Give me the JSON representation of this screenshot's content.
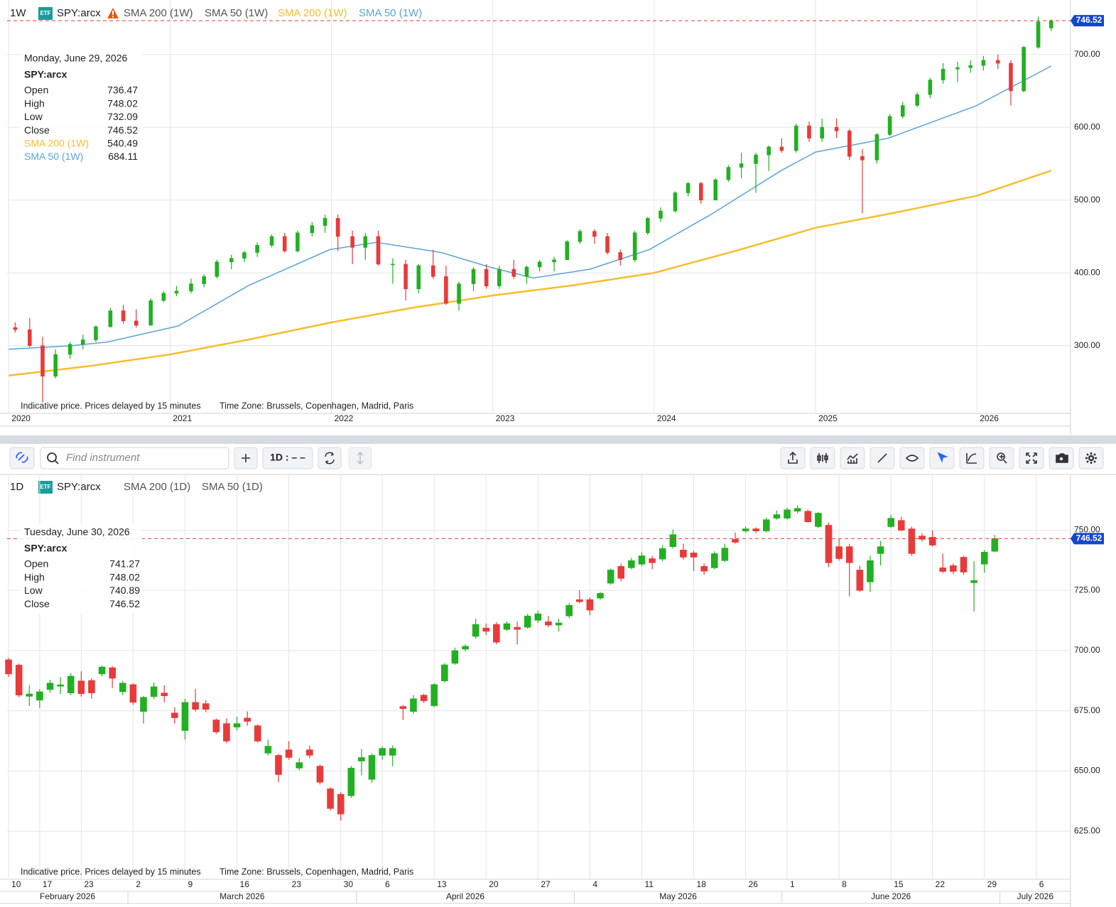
{
  "toolbar": {
    "search_placeholder": "Find instrument",
    "interval": "1D : – –"
  },
  "chart_data": [
    {
      "type": "candlestick",
      "interval": "1W",
      "badge": "ETF",
      "symbol": "SPY:arcx",
      "studies": [
        "SMA 200 (1W)",
        "SMA 50 (1W)"
      ],
      "note": "Indicative price. Prices delayed by 15 minutes",
      "timezone": "Time Zone: Brussels, Copenhagen, Madrid, Paris",
      "info": {
        "date": "Monday, June 29, 2026",
        "symbol": "SPY:arcx",
        "rows": [
          {
            "label": "Open",
            "value": 736.47
          },
          {
            "label": "High",
            "value": 748.02
          },
          {
            "label": "Low",
            "value": 732.09
          },
          {
            "label": "Close",
            "value": 746.52
          }
        ],
        "series_values": [
          540.49,
          684.11
        ]
      },
      "last_price": 746.52,
      "up_color": "#22b022",
      "down_color": "#e83a3a",
      "grid": true,
      "xlim": [
        2019.99,
        2026.58
      ],
      "xticks": [
        2020,
        2021,
        2022,
        2023,
        2024,
        2025,
        2026
      ],
      "ylim": [
        207,
        770
      ],
      "yticks": [
        {
          "value": 300,
          "label": "300.00"
        },
        {
          "value": 400,
          "label": "400.00"
        },
        {
          "value": 500,
          "label": "500.00"
        },
        {
          "value": 600,
          "label": "600.00"
        },
        {
          "value": 700,
          "label": "700.00"
        }
      ],
      "x": [
        2020.04,
        2020.13,
        2020.21,
        2020.29,
        2020.38,
        2020.46,
        2020.54,
        2020.63,
        2020.71,
        2020.79,
        2020.88,
        2020.96,
        2021.04,
        2021.13,
        2021.21,
        2021.29,
        2021.38,
        2021.46,
        2021.54,
        2021.63,
        2021.71,
        2021.79,
        2021.88,
        2021.96,
        2022.04,
        2022.13,
        2022.21,
        2022.29,
        2022.38,
        2022.46,
        2022.54,
        2022.63,
        2022.71,
        2022.79,
        2022.88,
        2022.96,
        2023.04,
        2023.13,
        2023.21,
        2023.29,
        2023.38,
        2023.46,
        2023.54,
        2023.63,
        2023.71,
        2023.79,
        2023.88,
        2023.96,
        2024.04,
        2024.13,
        2024.21,
        2024.29,
        2024.38,
        2024.46,
        2024.54,
        2024.63,
        2024.71,
        2024.79,
        2024.88,
        2024.96,
        2025.04,
        2025.13,
        2025.21,
        2025.29,
        2025.38,
        2025.46,
        2025.54,
        2025.63,
        2025.71,
        2025.79,
        2025.88,
        2025.96,
        2026.04,
        2026.13,
        2026.21,
        2026.29,
        2026.38,
        2026.46
      ],
      "open": [
        325,
        322,
        300,
        258,
        288,
        302,
        308,
        326,
        348,
        334,
        328,
        362,
        372,
        375,
        385,
        395,
        415,
        420,
        428,
        438,
        450,
        430,
        455,
        465,
        475,
        450,
        435,
        450,
        412,
        412,
        378,
        410,
        395,
        358,
        385,
        405,
        382,
        405,
        395,
        408,
        415,
        418,
        443,
        457,
        450,
        428,
        418,
        455,
        475,
        485,
        510,
        523,
        500,
        528,
        545,
        550,
        562,
        573,
        568,
        602,
        585,
        600,
        595,
        560,
        555,
        590,
        615,
        630,
        645,
        665,
        680,
        682,
        685,
        692,
        688,
        650,
        710,
        736.47
      ],
      "high": [
        332,
        338,
        312,
        295,
        305,
        315,
        328,
        352,
        356,
        350,
        365,
        375,
        382,
        392,
        398,
        418,
        425,
        430,
        442,
        453,
        455,
        458,
        470,
        480,
        480,
        458,
        455,
        458,
        420,
        418,
        412,
        432,
        410,
        388,
        408,
        412,
        410,
        418,
        410,
        418,
        422,
        445,
        460,
        460,
        455,
        432,
        458,
        477,
        490,
        512,
        525,
        525,
        530,
        548,
        565,
        565,
        575,
        585,
        605,
        608,
        612,
        612,
        598,
        570,
        592,
        618,
        635,
        648,
        668,
        688,
        690,
        692,
        698,
        700,
        692,
        712,
        752,
        748.02
      ],
      "low": [
        318,
        298,
        222,
        255,
        282,
        295,
        305,
        325,
        330,
        325,
        328,
        360,
        368,
        372,
        380,
        392,
        405,
        415,
        422,
        435,
        428,
        428,
        450,
        455,
        430,
        412,
        418,
        410,
        385,
        362,
        372,
        392,
        356,
        348,
        375,
        378,
        378,
        392,
        385,
        402,
        402,
        418,
        440,
        440,
        425,
        410,
        415,
        452,
        470,
        483,
        505,
        495,
        500,
        525,
        530,
        510,
        540,
        565,
        565,
        580,
        580,
        585,
        555,
        482,
        550,
        588,
        612,
        628,
        640,
        660,
        662,
        675,
        678,
        680,
        630,
        648,
        708,
        732.09
      ],
      "close": [
        322,
        300,
        258,
        288,
        302,
        308,
        326,
        348,
        334,
        328,
        362,
        372,
        375,
        385,
        395,
        415,
        420,
        428,
        438,
        450,
        430,
        455,
        465,
        475,
        450,
        435,
        450,
        412,
        412,
        378,
        410,
        395,
        358,
        385,
        405,
        382,
        405,
        395,
        408,
        415,
        418,
        443,
        457,
        450,
        428,
        418,
        455,
        475,
        485,
        510,
        523,
        500,
        528,
        545,
        550,
        562,
        573,
        568,
        602,
        585,
        600,
        595,
        560,
        555,
        590,
        615,
        630,
        645,
        665,
        680,
        682,
        685,
        692,
        688,
        650,
        710,
        745,
        746.52
      ],
      "series": [
        {
          "name": "SMA 200 (1W)",
          "color": "#f7bd2c",
          "x": [
            2020.0,
            2020.5,
            2021.0,
            2021.5,
            2022.0,
            2022.5,
            2023.0,
            2023.5,
            2024.0,
            2024.5,
            2025.0,
            2025.5,
            2026.0,
            2026.46
          ],
          "values": [
            259,
            272,
            288,
            309,
            332,
            352,
            369,
            383,
            400,
            430,
            462,
            483,
            506,
            540.49
          ]
        },
        {
          "name": "SMA 50 (1W)",
          "color": "#5ba3d9",
          "x": [
            2020.0,
            2020.39,
            2020.61,
            2021.05,
            2021.49,
            2021.99,
            2022.28,
            2022.68,
            2022.98,
            2023.25,
            2023.6,
            2023.97,
            2024.35,
            2024.79,
            2025.0,
            2025.45,
            2025.99,
            2026.46
          ],
          "values": [
            295,
            300,
            305,
            327,
            383,
            432,
            442,
            428,
            408,
            393,
            405,
            432,
            480,
            541,
            566,
            585,
            629,
            684.11
          ]
        }
      ]
    },
    {
      "type": "candlestick",
      "interval": "1D",
      "badge": "ETF",
      "symbol": "SPY:arcx",
      "studies": [
        "SMA 200 (1D)",
        "SMA 50 (1D)"
      ],
      "note": "Indicative price. Prices delayed by 15 minutes",
      "timezone": "Time Zone: Brussels, Copenhagen, Madrid, Paris",
      "info": {
        "date": "Tuesday, June 30, 2026",
        "symbol": "SPY:arcx",
        "rows": [
          {
            "label": "Open",
            "value": 741.27
          },
          {
            "label": "High",
            "value": 748.02
          },
          {
            "label": "Low",
            "value": 740.89
          },
          {
            "label": "Close",
            "value": 746.52
          }
        ]
      },
      "last_price": 746.52,
      "up_color": "#22b022",
      "down_color": "#e83a3a",
      "grid": true,
      "xlim": [
        -0.14,
        102.3
      ],
      "xticks": [
        {
          "value": 0,
          "label": "10"
        },
        {
          "value": 3,
          "label": "17"
        },
        {
          "value": 7,
          "label": "23"
        },
        {
          "value": 12,
          "label": "2"
        },
        {
          "value": 17,
          "label": "9"
        },
        {
          "value": 22,
          "label": "16"
        },
        {
          "value": 27,
          "label": "23"
        },
        {
          "value": 32,
          "label": "30"
        },
        {
          "value": 36,
          "label": "6"
        },
        {
          "value": 41,
          "label": "13"
        },
        {
          "value": 46,
          "label": "20"
        },
        {
          "value": 51,
          "label": "27"
        },
        {
          "value": 56,
          "label": "4"
        },
        {
          "value": 61,
          "label": "11"
        },
        {
          "value": 66,
          "label": "18"
        },
        {
          "value": 71,
          "label": "26"
        },
        {
          "value": 75,
          "label": "1"
        },
        {
          "value": 80,
          "label": "8"
        },
        {
          "value": 85,
          "label": "15"
        },
        {
          "value": 89,
          "label": "22"
        },
        {
          "value": 94,
          "label": "29"
        },
        {
          "value": 99,
          "label": "6"
        }
      ],
      "month_ticks": [
        {
          "value": 0,
          "label": "February 2026"
        },
        {
          "value": 12,
          "label": "March 2026"
        },
        {
          "value": 34,
          "label": "April 2026"
        },
        {
          "value": 55,
          "label": "May 2026"
        },
        {
          "value": 75,
          "label": "June 2026"
        },
        {
          "value": 96,
          "label": "July 2026"
        }
      ],
      "ylim": [
        605,
        772
      ],
      "yticks": [
        {
          "value": 625,
          "label": "625.00"
        },
        {
          "value": 650,
          "label": "650.00"
        },
        {
          "value": 675,
          "label": "675.00"
        },
        {
          "value": 700,
          "label": "700.00"
        },
        {
          "value": 725,
          "label": "725.00"
        },
        {
          "value": 750,
          "label": "750.00"
        }
      ],
      "open": [
        696.2,
        694,
        681,
        679.4,
        683.8,
        685.2,
        682.4,
        687.4,
        687.6,
        690.3,
        692.9,
        682.9,
        685.9,
        674.7,
        680.9,
        682.4,
        674.1,
        666.8,
        678.5,
        678,
        671.2,
        669.7,
        668.2,
        672,
        668.8,
        657.4,
        656.5,
        658.8,
        651.2,
        658.8,
        652,
        642.6,
        640.3,
        639.7,
        654.1,
        646.5,
        656.5,
        656.5,
        676.8,
        674.7,
        681.5,
        677.1,
        687.4,
        694.7,
        700.6,
        705.9,
        709.4,
        710.9,
        708.8,
        709.7,
        709.7,
        712.6,
        712,
        710.6,
        714.4,
        721.2,
        721.2,
        721.8,
        728,
        735,
        734.4,
        735.9,
        738.2,
        738,
        743.2,
        741.8,
        740.6,
        735,
        734.4,
        737.4,
        746.2,
        749.7,
        750.6,
        749.7,
        755,
        755,
        757.9,
        757.9,
        751.5,
        752.1,
        743.2,
        743.2,
        733.5,
        728.5,
        740.3,
        751.5,
        754.1,
        750.6,
        747.6,
        747.1,
        734.4,
        735.3,
        738.8,
        728.2,
        735.9,
        741.27
      ],
      "high": [
        697,
        694.6,
        685.6,
        684,
        687.8,
        689,
        690.6,
        691.4,
        688.5,
        693.8,
        693.5,
        687.4,
        686.5,
        681.2,
        686.8,
        685.6,
        676.5,
        680,
        684.1,
        679.4,
        671.8,
        671.8,
        672.6,
        674.7,
        669.4,
        663,
        657.1,
        662.4,
        655.3,
        660.6,
        652.6,
        643.2,
        641.2,
        652.1,
        659.1,
        657.4,
        660.3,
        660.6,
        677.4,
        681.5,
        682.1,
        686.5,
        694.7,
        701.2,
        702.6,
        713.2,
        711.2,
        711.8,
        712.1,
        712,
        715.3,
        716.5,
        714.4,
        713.2,
        719.7,
        725,
        722.1,
        724.4,
        734.1,
        736.2,
        738.5,
        740.9,
        739.4,
        743.8,
        750.3,
        744.4,
        741.5,
        736.2,
        741.2,
        744.4,
        749.1,
        751.5,
        751.2,
        755.3,
        758.2,
        759.4,
        760.3,
        758.5,
        757.6,
        753.2,
        746.5,
        744.4,
        735.3,
        739.4,
        745.6,
        756.5,
        755.6,
        751.5,
        748.8,
        750,
        740.3,
        736.2,
        739.4,
        737.1,
        741.8,
        748.02
      ],
      "low": [
        689,
        680.6,
        677,
        676.1,
        682.5,
        682,
        681.5,
        680.9,
        680,
        689.4,
        684.4,
        681.5,
        677.4,
        669.7,
        680,
        678.5,
        669.7,
        663,
        674.7,
        674.4,
        665.3,
        661.5,
        666.8,
        668.8,
        661.8,
        656.5,
        645.3,
        654.7,
        650.3,
        655.3,
        644.4,
        633.5,
        629.4,
        638.8,
        648.2,
        645,
        654.7,
        652,
        671.2,
        673.8,
        678.2,
        676.5,
        686.8,
        694.1,
        699.7,
        705,
        706.5,
        702.6,
        708.2,
        702.6,
        709.1,
        711.5,
        709.7,
        707.9,
        713.5,
        719.7,
        714.7,
        721.2,
        727.4,
        728.8,
        733.8,
        735,
        733.8,
        737.1,
        742.4,
        737.9,
        733,
        731.5,
        733.8,
        736.8,
        744.4,
        749.1,
        748.8,
        749.1,
        754.4,
        754.4,
        757.1,
        753.2,
        750.9,
        734.7,
        737.4,
        722.6,
        724.4,
        724.4,
        735.3,
        750.9,
        749.7,
        739.4,
        745.3,
        743.2,
        732.1,
        731.8,
        731.5,
        716.2,
        732.4,
        740.89
      ],
      "close": [
        690.3,
        681.5,
        682,
        682.9,
        686.5,
        685.8,
        689.4,
        682.1,
        682.4,
        693.2,
        688.5,
        686.5,
        678.5,
        680.6,
        685,
        681.2,
        672.1,
        678.5,
        675.6,
        675.6,
        666.2,
        662.4,
        669.7,
        670.6,
        662.4,
        660.3,
        648.5,
        655.6,
        653.5,
        656.5,
        645.3,
        634.4,
        632.1,
        651.2,
        655.6,
        656.5,
        659.4,
        659.4,
        675.9,
        680,
        679.1,
        685.9,
        694.1,
        700,
        701.8,
        710.9,
        708,
        703.5,
        711.2,
        708.8,
        714.4,
        715.3,
        710.6,
        711.5,
        718.8,
        720.3,
        716.8,
        723.8,
        733.5,
        730,
        737.4,
        739.4,
        736.5,
        742.4,
        748.2,
        738.8,
        738.8,
        733,
        740.3,
        742.6,
        745,
        750.6,
        749.7,
        754.4,
        756.5,
        758.5,
        759.1,
        753.5,
        757.1,
        736.5,
        738.2,
        736.5,
        725,
        737.4,
        743.2,
        755,
        750,
        740.3,
        746.2,
        743.8,
        732.9,
        732.9,
        732.6,
        729.1,
        740.9,
        746.52
      ]
    }
  ]
}
